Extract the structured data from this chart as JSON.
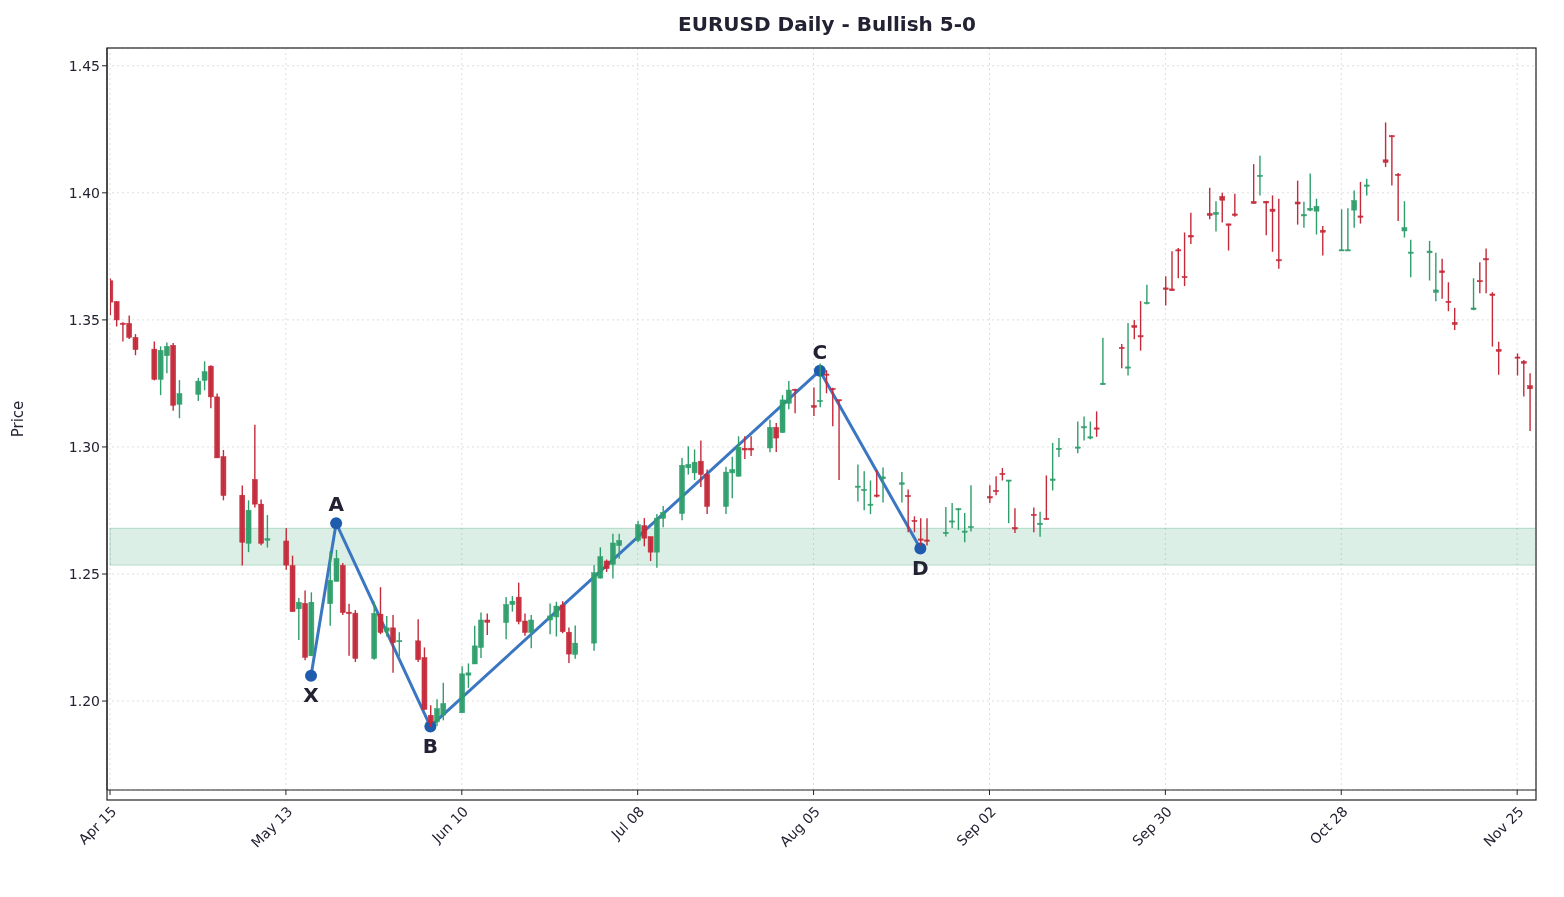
{
  "chart_data": {
    "type": "candlestick",
    "title": "EURUSD Daily - Bullish 5-0",
    "ylabel": "Price",
    "x": [
      "--04-15",
      "--04-16",
      "--04-17",
      "--04-18",
      "--04-19",
      "--04-22",
      "--04-23",
      "--04-24",
      "--04-25",
      "--04-26",
      "--04-29",
      "--04-30",
      "--05-01",
      "--05-02",
      "--05-03",
      "--05-06",
      "--05-07",
      "--05-08",
      "--05-09",
      "--05-10",
      "--05-13",
      "--05-14",
      "--05-15",
      "--05-16",
      "--05-17",
      "--05-20",
      "--05-21",
      "--05-22",
      "--05-23",
      "--05-24",
      "--05-27",
      "--05-28",
      "--05-29",
      "--05-30",
      "--05-31",
      "--06-03",
      "--06-04",
      "--06-05",
      "--06-06",
      "--06-07",
      "--06-10",
      "--06-11",
      "--06-12",
      "--06-13",
      "--06-14",
      "--06-17",
      "--06-18",
      "--06-19",
      "--06-20",
      "--06-21",
      "--06-24",
      "--06-25",
      "--06-26",
      "--06-27",
      "--06-28",
      "--07-01",
      "--07-02",
      "--07-03",
      "--07-04",
      "--07-05",
      "--07-08",
      "--07-09",
      "--07-10",
      "--07-11",
      "--07-12",
      "--07-15",
      "--07-16",
      "--07-17",
      "--07-18",
      "--07-19",
      "--07-22",
      "--07-23",
      "--07-24",
      "--07-25",
      "--07-26",
      "--07-29",
      "--07-30",
      "--07-31",
      "--08-01",
      "--08-02",
      "--08-05",
      "--08-06",
      "--08-07",
      "--08-08",
      "--08-09",
      "--08-12",
      "--08-13",
      "--08-14",
      "--08-15",
      "--08-16",
      "--08-19",
      "--08-20",
      "--08-21",
      "--08-22",
      "--08-23",
      "--08-26",
      "--08-27",
      "--08-28",
      "--08-29",
      "--08-30",
      "--09-02",
      "--09-03",
      "--09-04",
      "--09-05",
      "--09-06",
      "--09-09",
      "--09-10",
      "--09-11",
      "--09-12",
      "--09-13",
      "--09-16",
      "--09-17",
      "--09-18",
      "--09-19",
      "--09-20",
      "--09-23",
      "--09-24",
      "--09-25",
      "--09-26",
      "--09-27",
      "--09-30",
      "--10-01",
      "--10-02",
      "--10-03",
      "--10-04",
      "--10-07",
      "--10-08",
      "--10-09",
      "--10-10",
      "--10-11",
      "--10-14",
      "--10-15",
      "--10-16",
      "--10-17",
      "--10-18",
      "--10-21",
      "--10-22",
      "--10-23",
      "--10-24",
      "--10-25",
      "--10-28",
      "--10-29",
      "--10-30",
      "--10-31",
      "--11-01",
      "--11-04",
      "--11-05",
      "--11-06",
      "--11-07",
      "--11-08",
      "--11-11",
      "--11-12",
      "--11-13",
      "--11-14",
      "--11-15",
      "--11-18",
      "--11-19",
      "--11-20",
      "--11-21",
      "--11-22",
      "--11-25",
      "--11-26",
      "--11-27"
    ],
    "ohlc": [
      [
        1.3654,
        1.3663,
        1.3518,
        1.357
      ],
      [
        1.3572,
        1.3574,
        1.3474,
        1.35
      ],
      [
        1.3487,
        1.3491,
        1.3415,
        1.3482
      ],
      [
        1.3486,
        1.3517,
        1.3425,
        1.3431
      ],
      [
        1.3431,
        1.3444,
        1.3361,
        1.3383
      ],
      [
        1.3385,
        1.3415,
        1.3262,
        1.3266
      ],
      [
        1.3266,
        1.3396,
        1.3204,
        1.338
      ],
      [
        1.3359,
        1.3411,
        1.329,
        1.3396
      ],
      [
        1.34,
        1.3409,
        1.3142,
        1.3164
      ],
      [
        1.3168,
        1.3263,
        1.3113,
        1.321
      ],
      [
        1.3207,
        1.3272,
        1.3181,
        1.3259
      ],
      [
        1.3262,
        1.3337,
        1.3223,
        1.3296
      ],
      [
        1.3318,
        1.3322,
        1.3152,
        1.3197
      ],
      [
        1.3197,
        1.321,
        1.2957,
        1.2957
      ],
      [
        1.2962,
        1.2988,
        1.279,
        1.2809
      ],
      [
        1.281,
        1.2848,
        1.2533,
        1.2625
      ],
      [
        1.2621,
        1.279,
        1.2586,
        1.2751
      ],
      [
        1.2872,
        1.3087,
        1.2762,
        1.2775
      ],
      [
        1.2775,
        1.2793,
        1.2613,
        1.2621
      ],
      [
        1.2633,
        1.2732,
        1.2604,
        1.2639
      ],
      [
        1.263,
        1.268,
        1.2517,
        1.2535
      ],
      [
        1.2533,
        1.2572,
        1.2352,
        1.2352
      ],
      [
        1.2363,
        1.2406,
        1.224,
        1.2389
      ],
      [
        1.2384,
        1.2435,
        1.2161,
        1.2172
      ],
      [
        1.2178,
        1.2428,
        1.2178,
        1.2389
      ],
      [
        1.2383,
        1.259,
        1.2296,
        1.2475
      ],
      [
        1.2471,
        1.2595,
        1.2471,
        1.2561
      ],
      [
        1.2534,
        1.2543,
        1.2339,
        1.2348
      ],
      [
        1.235,
        1.2383,
        1.2178,
        1.2344
      ],
      [
        1.2346,
        1.2358,
        1.2154,
        1.2168
      ],
      [
        1.2168,
        1.2391,
        1.2163,
        1.2345
      ],
      [
        1.2342,
        1.2448,
        1.2263,
        1.227
      ],
      [
        1.2275,
        1.2335,
        1.2254,
        1.2288
      ],
      [
        1.2288,
        1.2339,
        1.2111,
        1.223
      ],
      [
        1.2236,
        1.2271,
        1.2176,
        1.2238
      ],
      [
        1.2237,
        1.2322,
        1.2154,
        1.2163
      ],
      [
        1.2171,
        1.2211,
        1.1967,
        1.1967
      ],
      [
        1.1944,
        1.1984,
        1.1898,
        1.1915
      ],
      [
        1.1918,
        1.2007,
        1.1902,
        1.197
      ],
      [
        1.1945,
        1.2072,
        1.1924,
        1.199
      ],
      [
        1.1954,
        1.2137,
        1.1954,
        1.2107
      ],
      [
        1.2102,
        1.2148,
        1.2052,
        1.2111
      ],
      [
        1.2146,
        1.2296,
        1.2146,
        1.2217
      ],
      [
        1.2211,
        1.2349,
        1.2169,
        1.2319
      ],
      [
        1.2319,
        1.2345,
        1.226,
        1.231
      ],
      [
        1.2309,
        1.241,
        1.2243,
        1.238
      ],
      [
        1.238,
        1.2413,
        1.2352,
        1.2393
      ],
      [
        1.2409,
        1.2466,
        1.2302,
        1.2313
      ],
      [
        1.2315,
        1.2345,
        1.2257,
        1.227
      ],
      [
        1.227,
        1.2339,
        1.2208,
        1.2319
      ],
      [
        1.2319,
        1.2384,
        1.2263,
        1.2335
      ],
      [
        1.2331,
        1.2391,
        1.2254,
        1.2374
      ],
      [
        1.2378,
        1.2393,
        1.2267,
        1.2273
      ],
      [
        1.2271,
        1.2289,
        1.215,
        1.2185
      ],
      [
        1.2184,
        1.2297,
        1.2167,
        1.2228
      ],
      [
        1.2228,
        1.2534,
        1.2198,
        1.2505
      ],
      [
        1.2484,
        1.2605,
        1.2482,
        1.2568
      ],
      [
        1.2551,
        1.2557,
        1.2508,
        1.2521
      ],
      [
        1.2538,
        1.2658,
        1.2482,
        1.2622
      ],
      [
        1.2612,
        1.2658,
        1.256,
        1.2632
      ],
      [
        1.2632,
        1.271,
        1.2625,
        1.2694
      ],
      [
        1.269,
        1.272,
        1.2609,
        1.2641
      ],
      [
        1.2647,
        1.2647,
        1.2551,
        1.2586
      ],
      [
        1.2586,
        1.2736,
        1.2525,
        1.272
      ],
      [
        1.2719,
        1.2768,
        1.2684,
        1.2742
      ],
      [
        1.2738,
        1.2957,
        1.2712,
        1.2928
      ],
      [
        1.2918,
        1.3003,
        1.2892,
        1.2931
      ],
      [
        1.2898,
        1.299,
        1.287,
        1.294
      ],
      [
        1.2944,
        1.3025,
        1.2842,
        1.2892
      ],
      [
        1.2892,
        1.2911,
        1.2736,
        1.2766
      ],
      [
        1.2766,
        1.2922,
        1.2736,
        1.2901
      ],
      [
        1.2898,
        1.2961,
        1.2798,
        1.2911
      ],
      [
        1.2885,
        1.3042,
        1.2883,
        1.2999
      ],
      [
        1.2995,
        1.3042,
        1.2953,
        1.2988
      ],
      [
        1.2995,
        1.3042,
        1.2964,
        1.2988
      ],
      [
        1.2996,
        1.3107,
        1.2979,
        1.3077
      ],
      [
        1.3077,
        1.3094,
        1.298,
        1.3035
      ],
      [
        1.3057,
        1.3204,
        1.3055,
        1.3185
      ],
      [
        1.3172,
        1.326,
        1.3148,
        1.3224
      ],
      [
        1.3227,
        1.3229,
        1.3133,
        1.3223
      ],
      [
        1.3163,
        1.3234,
        1.3122,
        1.3156
      ],
      [
        1.318,
        1.3328,
        1.3156,
        1.3183
      ],
      [
        1.3287,
        1.3302,
        1.3211,
        1.3283
      ],
      [
        1.323,
        1.3233,
        1.3081,
        1.3226
      ],
      [
        1.3186,
        1.3186,
        1.287,
        1.3182
      ],
      [
        1.2842,
        1.2931,
        1.2785,
        1.2846
      ],
      [
        1.2829,
        1.2904,
        1.2751,
        1.2833
      ],
      [
        1.2771,
        1.2868,
        1.2736,
        1.2775
      ],
      [
        1.2811,
        1.2909,
        1.2801,
        1.2806
      ],
      [
        1.2875,
        1.2919,
        1.2781,
        1.2882
      ],
      [
        1.2853,
        1.2901,
        1.2781,
        1.2859
      ],
      [
        1.2809,
        1.2833,
        1.2664,
        1.2805
      ],
      [
        1.2711,
        1.2727,
        1.2664,
        1.2707
      ],
      [
        1.2638,
        1.2719,
        1.2612,
        1.2633
      ],
      [
        1.2634,
        1.2719,
        1.2612,
        1.2629
      ],
      [
        1.2659,
        1.2764,
        1.2648,
        1.2664
      ],
      [
        1.2705,
        1.2779,
        1.2681,
        1.2709
      ],
      [
        1.2753,
        1.276,
        1.2673,
        1.2757
      ],
      [
        1.2664,
        1.274,
        1.2625,
        1.2669
      ],
      [
        1.2684,
        1.2849,
        1.2667,
        1.2687
      ],
      [
        1.2805,
        1.2849,
        1.2779,
        1.2799
      ],
      [
        1.2829,
        1.2885,
        1.281,
        1.2824
      ],
      [
        1.2896,
        1.2917,
        1.2868,
        1.2891
      ],
      [
        1.2867,
        1.287,
        1.27,
        1.287
      ],
      [
        1.2683,
        1.2759,
        1.2661,
        1.2677
      ],
      [
        1.2735,
        1.2762,
        1.2664,
        1.273
      ],
      [
        1.2694,
        1.2745,
        1.2647,
        1.27
      ],
      [
        1.2719,
        1.2888,
        1.2715,
        1.2715
      ],
      [
        1.2868,
        1.3016,
        1.2829,
        1.2874
      ],
      [
        1.299,
        1.3035,
        1.296,
        1.2995
      ],
      [
        1.2995,
        1.31,
        1.2975,
        1.3
      ],
      [
        1.3075,
        1.312,
        1.3025,
        1.308
      ],
      [
        1.3035,
        1.31,
        1.303,
        1.304
      ],
      [
        1.3075,
        1.314,
        1.304,
        1.307
      ],
      [
        1.3245,
        1.343,
        1.3245,
        1.3251
      ],
      [
        1.3392,
        1.3405,
        1.331,
        1.3387
      ],
      [
        1.331,
        1.3488,
        1.3281,
        1.3315
      ],
      [
        1.3478,
        1.3499,
        1.3424,
        1.347
      ],
      [
        1.3438,
        1.3574,
        1.3379,
        1.3433
      ],
      [
        1.3564,
        1.3638,
        1.3561,
        1.3569
      ],
      [
        1.3626,
        1.3672,
        1.3557,
        1.362
      ],
      [
        1.3622,
        1.377,
        1.3615,
        1.3615
      ],
      [
        1.3776,
        1.3783,
        1.3664,
        1.3772
      ],
      [
        1.3671,
        1.3844,
        1.3633,
        1.3667
      ],
      [
        1.3833,
        1.3922,
        1.3799,
        1.3826
      ],
      [
        1.3919,
        1.402,
        1.3896,
        1.3911
      ],
      [
        1.3915,
        1.3967,
        1.3848,
        1.3923
      ],
      [
        1.3986,
        1.4,
        1.3883,
        1.3971
      ],
      [
        1.3878,
        1.3878,
        1.3773,
        1.3872
      ],
      [
        1.3917,
        1.3996,
        1.3906,
        1.3911
      ],
      [
        1.3966,
        1.4113,
        1.3958,
        1.3958
      ],
      [
        1.4064,
        1.4146,
        1.399,
        1.4069
      ],
      [
        1.3967,
        1.3967,
        1.3833,
        1.396
      ],
      [
        1.3936,
        1.399,
        1.3768,
        1.3927
      ],
      [
        1.3737,
        1.3977,
        1.3701,
        1.3733
      ],
      [
        1.3964,
        1.4048,
        1.3875,
        1.3956
      ],
      [
        1.3909,
        1.3965,
        1.3863,
        1.3915
      ],
      [
        1.3932,
        1.4076,
        1.3928,
        1.3939
      ],
      [
        1.3928,
        1.3977,
        1.3836,
        1.3947
      ],
      [
        1.3853,
        1.387,
        1.3753,
        1.3845
      ],
      [
        1.3772,
        1.3935,
        1.3772,
        1.3776
      ],
      [
        1.3772,
        1.3939,
        1.3772,
        1.3776
      ],
      [
        1.3932,
        1.4009,
        1.3863,
        1.397
      ],
      [
        1.3909,
        1.4043,
        1.3879,
        1.3904
      ],
      [
        1.4026,
        1.4055,
        1.399,
        1.4031
      ],
      [
        1.413,
        1.4277,
        1.4102,
        1.412
      ],
      [
        1.4225,
        1.4228,
        1.4029,
        1.4221
      ],
      [
        1.4073,
        1.4078,
        1.3889,
        1.4068
      ],
      [
        1.385,
        1.3967,
        1.3824,
        1.3863
      ],
      [
        1.3763,
        1.3815,
        1.3668,
        1.3767
      ],
      [
        1.3764,
        1.3811,
        1.3655,
        1.3771
      ],
      [
        1.3608,
        1.3764,
        1.3573,
        1.3618
      ],
      [
        1.3693,
        1.3741,
        1.3583,
        1.3686
      ],
      [
        1.3573,
        1.3648,
        1.3534,
        1.3568
      ],
      [
        1.349,
        1.3547,
        1.346,
        1.3482
      ],
      [
        1.354,
        1.3664,
        1.3538,
        1.3547
      ],
      [
        1.3655,
        1.3727,
        1.3605,
        1.365
      ],
      [
        1.3741,
        1.3781,
        1.3605,
        1.3736
      ],
      [
        1.3602,
        1.3609,
        1.3395,
        1.3596
      ],
      [
        1.3384,
        1.3414,
        1.3284,
        1.3376
      ],
      [
        1.3354,
        1.3368,
        1.3281,
        1.335
      ],
      [
        1.3337,
        1.3342,
        1.3199,
        1.3329
      ],
      [
        1.3241,
        1.329,
        1.3063,
        1.3229
      ]
    ],
    "series": [
      {
        "type": "line",
        "color": "#3a76c2",
        "x": [
          "--05-17",
          "--05-21",
          "--06-05",
          "--08-06",
          "--08-22"
        ],
        "values": [
          1.21,
          1.27,
          1.19,
          1.33,
          1.26
        ]
      }
    ],
    "marker": "circle",
    "annotations": [
      {
        "text": "X",
        "x": "--05-17",
        "y": 1.21
      },
      {
        "text": "A",
        "x": "--05-21",
        "y": 1.27
      },
      {
        "text": "B",
        "x": "--06-05",
        "y": 1.19
      },
      {
        "text": "C",
        "x": "--08-06",
        "y": 1.33
      },
      {
        "text": "D",
        "x": "--08-22",
        "y": 1.26
      }
    ],
    "bands": [
      {
        "axis": "y",
        "from": 1.2535,
        "to": 1.268,
        "color": "#2e9e6b"
      }
    ],
    "xlim": [
      "--04-15",
      "--11-28"
    ],
    "xticks": [
      {
        "value": "--04-15",
        "label": "Apr 15"
      },
      {
        "value": "--05-13",
        "label": "May 13"
      },
      {
        "value": "--06-10",
        "label": "Jun 10"
      },
      {
        "value": "--07-08",
        "label": "Jul 08"
      },
      {
        "value": "--08-05",
        "label": "Aug 05"
      },
      {
        "value": "--09-02",
        "label": "Sep 02"
      },
      {
        "value": "--09-30",
        "label": "Sep 30"
      },
      {
        "value": "--10-28",
        "label": "Oct 28"
      },
      {
        "value": "--11-25",
        "label": "Nov 25"
      }
    ],
    "ylim": [
      1.165,
      1.457
    ],
    "yticks": [
      {
        "value": 1.2,
        "label": "1.20"
      },
      {
        "value": 1.25,
        "label": "1.25"
      },
      {
        "value": 1.3,
        "label": "1.30"
      },
      {
        "value": 1.35,
        "label": "1.35"
      },
      {
        "value": 1.4,
        "label": "1.40"
      },
      {
        "value": 1.45,
        "label": "1.45"
      }
    ],
    "grid": true
  }
}
